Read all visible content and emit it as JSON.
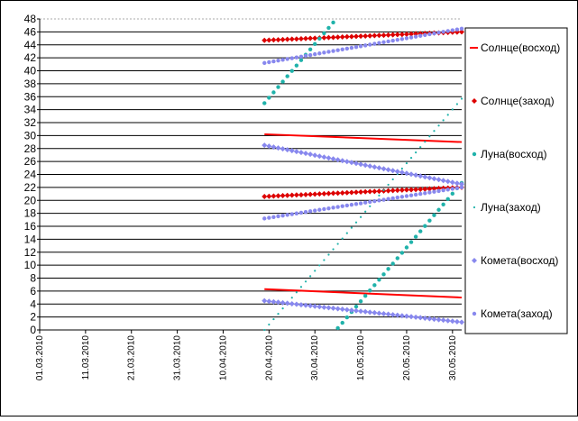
{
  "chart_data": {
    "type": "scatter",
    "title": "",
    "xlabel": "",
    "ylabel": "",
    "ylim": [
      0,
      48
    ],
    "yticks": [
      0,
      2,
      4,
      6,
      8,
      10,
      12,
      14,
      16,
      18,
      20,
      22,
      24,
      26,
      28,
      30,
      32,
      34,
      36,
      38,
      40,
      42,
      44,
      46,
      48
    ],
    "xticks": [
      "01.03.2010",
      "11.03.2010",
      "21.03.2010",
      "31.03.2010",
      "10.04.2010",
      "20.04.2010",
      "30.04.2010",
      "10.05.2010",
      "20.05.2010",
      "30.05.2010"
    ],
    "x_start": "01.03.2010",
    "x_end": "01.06.2010",
    "x_point_start": "19.04.2010",
    "x_point_end": "01.06.2010",
    "grid": "horizontal",
    "legend_position": "right",
    "series": [
      {
        "name": "Солнце(восход)",
        "color": "#ff0000",
        "marker": "line",
        "segments": [
          [
            30.2,
            29.0
          ],
          [
            6.3,
            5.0
          ]
        ]
      },
      {
        "name": "Солнце(заход)",
        "color": "#dd0000",
        "marker": "diamond",
        "segments": [
          [
            44.7,
            46.0
          ],
          [
            20.6,
            22.0
          ]
        ]
      },
      {
        "name": "Луна(восход)",
        "color": "#20b2aa",
        "marker": "dot",
        "arcs": [
          [
            35.0,
            48.0
          ],
          [
            0.0,
            48.0
          ],
          [
            0.0,
            10.0
          ]
        ]
      },
      {
        "name": "Луна(заход)",
        "color": "#20b2aa",
        "marker": "small-dot",
        "arcs": [
          [
            0.0,
            10.0
          ],
          [
            0.0,
            48.0
          ],
          [
            0.0,
            48.0
          ]
        ]
      },
      {
        "name": "Комета(восход)",
        "color": "#8888ee",
        "marker": "diamond",
        "segments": [
          [
            28.5,
            22.5
          ],
          [
            4.5,
            1.2
          ]
        ]
      },
      {
        "name": "Комета(заход)",
        "color": "#8888ee",
        "marker": "dot",
        "segments": [
          [
            41.2,
            46.5
          ],
          [
            17.2,
            22.0
          ]
        ]
      }
    ]
  }
}
